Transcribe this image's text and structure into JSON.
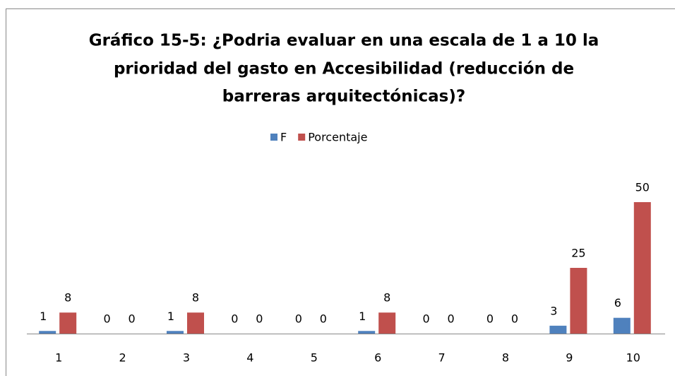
{
  "chart_data": {
    "type": "bar",
    "title": [
      "Gráfico 15-5: ¿Podria evaluar en una escala de 1 a 10 la",
      "prioridad del gasto en Accesibilidad (reducción de",
      "barreras arquitectónicas)?"
    ],
    "categories": [
      "1",
      "2",
      "3",
      "4",
      "5",
      "6",
      "7",
      "8",
      "9",
      "10"
    ],
    "series": [
      {
        "name": "F",
        "color": "#4f81bd",
        "values": [
          1,
          0,
          1,
          0,
          0,
          1,
          0,
          0,
          3,
          6
        ]
      },
      {
        "name": "Porcentaje",
        "color": "#c0504d",
        "values": [
          8,
          0,
          8,
          0,
          0,
          8,
          0,
          0,
          25,
          50
        ]
      }
    ],
    "ylim": [
      0,
      50
    ],
    "legend": "top"
  }
}
